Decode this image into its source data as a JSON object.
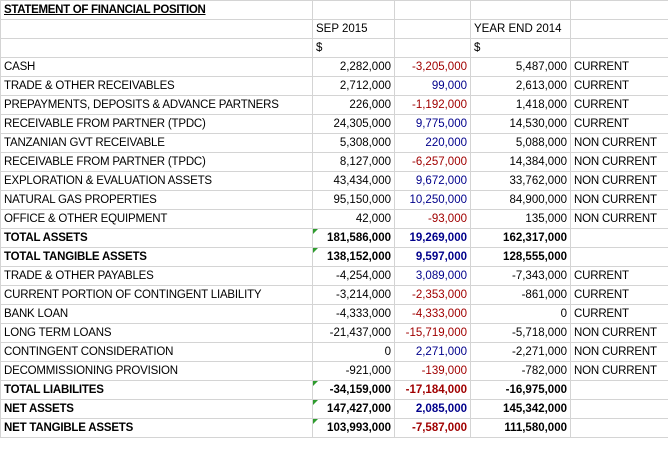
{
  "sheet": {
    "title": "STATEMENT OF FINANCIAL POSITION",
    "header": {
      "period1": "SEP 2015",
      "period2": "YEAR END 2014",
      "currency1": "$",
      "currency2": "$"
    },
    "rows": [
      {
        "label": "CASH",
        "sep2015": "2,282,000",
        "change": "-3,205,000",
        "ye2014": "5,487,000",
        "class": "CURRENT",
        "bold": false,
        "change_sign": "neg",
        "flag": false
      },
      {
        "label": "TRADE & OTHER RECEIVABLES",
        "sep2015": "2,712,000",
        "change": "99,000",
        "ye2014": "2,613,000",
        "class": "CURRENT",
        "bold": false,
        "change_sign": "pos",
        "flag": false
      },
      {
        "label": "PREPAYMENTS, DEPOSITS & ADVANCE PARTNERS",
        "sep2015": "226,000",
        "change": "-1,192,000",
        "ye2014": "1,418,000",
        "class": "CURRENT",
        "bold": false,
        "change_sign": "neg",
        "flag": false
      },
      {
        "label": "RECEIVABLE FROM PARTNER (TPDC)",
        "sep2015": "24,305,000",
        "change": "9,775,000",
        "ye2014": "14,530,000",
        "class": "CURRENT",
        "bold": false,
        "change_sign": "pos",
        "flag": false
      },
      {
        "label": "TANZANIAN GVT RECEIVABLE",
        "sep2015": "5,308,000",
        "change": "220,000",
        "ye2014": "5,088,000",
        "class": "NON CURRENT",
        "bold": false,
        "change_sign": "pos",
        "flag": false
      },
      {
        "label": "RECEIVABLE FROM PARTNER (TPDC)",
        "sep2015": "8,127,000",
        "change": "-6,257,000",
        "ye2014": "14,384,000",
        "class": "NON CURRENT",
        "bold": false,
        "change_sign": "neg",
        "flag": false
      },
      {
        "label": "EXPLORATION & EVALUATION ASSETS",
        "sep2015": "43,434,000",
        "change": "9,672,000",
        "ye2014": "33,762,000",
        "class": "NON CURRENT",
        "bold": false,
        "change_sign": "pos",
        "flag": false
      },
      {
        "label": "NATURAL GAS PROPERTIES",
        "sep2015": "95,150,000",
        "change": "10,250,000",
        "ye2014": "84,900,000",
        "class": "NON CURRENT",
        "bold": false,
        "change_sign": "pos",
        "flag": false
      },
      {
        "label": "OFFICE & OTHER EQUIPMENT",
        "sep2015": "42,000",
        "change": "-93,000",
        "ye2014": "135,000",
        "class": "NON CURRENT",
        "bold": false,
        "change_sign": "neg",
        "flag": false
      },
      {
        "label": "TOTAL ASSETS",
        "sep2015": "181,586,000",
        "change": "19,269,000",
        "ye2014": "162,317,000",
        "class": "",
        "bold": true,
        "change_sign": "pos",
        "flag": true
      },
      {
        "label": "TOTAL TANGIBLE ASSETS",
        "sep2015": "138,152,000",
        "change": "9,597,000",
        "ye2014": "128,555,000",
        "class": "",
        "bold": true,
        "change_sign": "pos",
        "flag": true
      },
      {
        "label": "TRADE & OTHER PAYABLES",
        "sep2015": "-4,254,000",
        "change": "3,089,000",
        "ye2014": "-7,343,000",
        "class": "CURRENT",
        "bold": false,
        "change_sign": "pos",
        "flag": false
      },
      {
        "label": "CURRENT PORTION OF CONTINGENT LIABILITY",
        "sep2015": "-3,214,000",
        "change": "-2,353,000",
        "ye2014": "-861,000",
        "class": "CURRENT",
        "bold": false,
        "change_sign": "neg",
        "flag": false
      },
      {
        "label": "BANK LOAN",
        "sep2015": "-4,333,000",
        "change": "-4,333,000",
        "ye2014": "0",
        "class": "CURRENT",
        "bold": false,
        "change_sign": "neg",
        "flag": false
      },
      {
        "label": "LONG TERM LOANS",
        "sep2015": "-21,437,000",
        "change": "-15,719,000",
        "ye2014": "-5,718,000",
        "class": "NON CURRENT",
        "bold": false,
        "change_sign": "neg",
        "flag": false
      },
      {
        "label": "CONTINGENT CONSIDERATION",
        "sep2015": "0",
        "change": "2,271,000",
        "ye2014": "-2,271,000",
        "class": "NON CURRENT",
        "bold": false,
        "change_sign": "pos",
        "flag": false
      },
      {
        "label": "DECOMMISSIONING PROVISION",
        "sep2015": "-921,000",
        "change": "-139,000",
        "ye2014": "-782,000",
        "class": "NON CURRENT",
        "bold": false,
        "change_sign": "neg",
        "flag": false
      },
      {
        "label": "TOTAL LIABILITES",
        "sep2015": "-34,159,000",
        "change": "-17,184,000",
        "ye2014": "-16,975,000",
        "class": "",
        "bold": true,
        "change_sign": "neg",
        "flag": true
      },
      {
        "label": "NET ASSETS",
        "sep2015": "147,427,000",
        "change": "2,085,000",
        "ye2014": "145,342,000",
        "class": "",
        "bold": true,
        "change_sign": "pos",
        "flag": true
      },
      {
        "label": "NET TANGIBLE ASSETS",
        "sep2015": "103,993,000",
        "change": "-7,587,000",
        "ye2014": "111,580,000",
        "class": "",
        "bold": true,
        "change_sign": "neg",
        "flag": true
      }
    ]
  },
  "colors": {
    "positive_change": "#00008b",
    "negative_change": "#a00000",
    "gridline": "#d4d4d4",
    "comment_flag": "#2e9b2e"
  }
}
